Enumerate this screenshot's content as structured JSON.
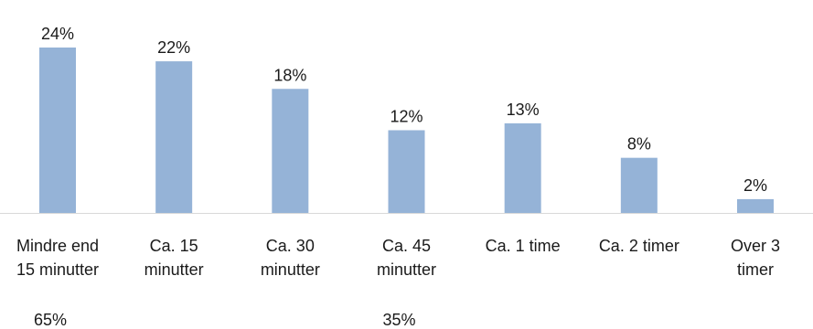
{
  "chart_data": {
    "type": "bar",
    "categories": [
      [
        "Mindre end",
        "15 minutter"
      ],
      [
        "Ca. 15",
        "minutter"
      ],
      [
        "Ca. 30",
        "minutter"
      ],
      [
        "Ca. 45",
        "minutter"
      ],
      [
        "Ca. 1 time"
      ],
      [
        "Ca. 2 timer"
      ],
      [
        "Over 3",
        "timer"
      ]
    ],
    "values": [
      24,
      22,
      18,
      12,
      13,
      8,
      2
    ],
    "data_labels": [
      "24%",
      "22%",
      "18%",
      "12%",
      "13%",
      "8%",
      "2%"
    ],
    "value_unit": "%",
    "ylim": [
      0,
      24
    ],
    "grid": false,
    "legend": "none",
    "bar_color": "#95b3d7",
    "axis_color": "#d9d9d9",
    "group_labels": [
      {
        "text": "65%",
        "under_category": 0
      },
      {
        "text": "35%",
        "under_category": 3
      }
    ]
  }
}
